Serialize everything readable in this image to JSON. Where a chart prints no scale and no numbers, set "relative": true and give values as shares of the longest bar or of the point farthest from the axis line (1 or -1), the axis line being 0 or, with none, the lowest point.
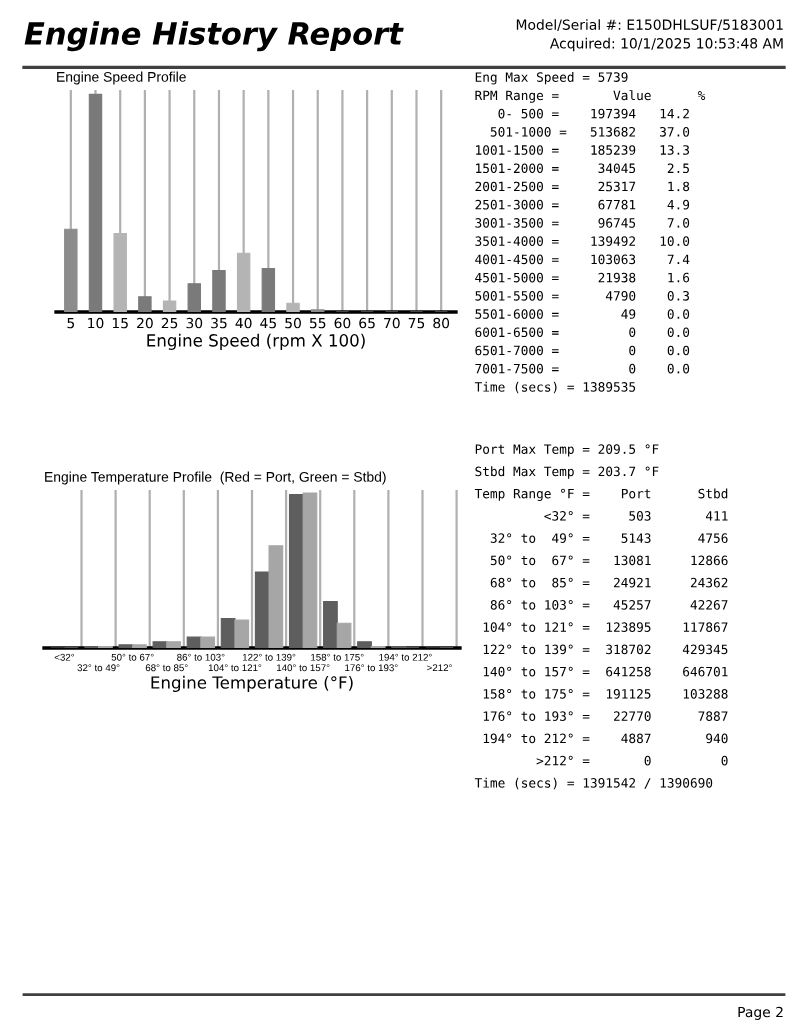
{
  "chart_data": [
    {
      "type": "bar",
      "relative": true,
      "title": "Engine Speed Profile",
      "xlabel": "Engine Speed (rpm X 100)",
      "categories": [
        "5",
        "10",
        "15",
        "20",
        "25",
        "30",
        "35",
        "40",
        "45",
        "50",
        "55",
        "60",
        "65",
        "70",
        "75",
        "80"
      ],
      "values": [
        0.38,
        1,
        0.36,
        0.07,
        0.05,
        0.13,
        0.19,
        0.27,
        0.2,
        0.04,
        0.01,
        0,
        0,
        0,
        0,
        0
      ],
      "colors": [
        "#8c8c8c",
        "#7a7a7a",
        "#b4b4b4",
        "#7a7a7a",
        "#b4b4b4",
        "#7a7a7a",
        "#7a7a7a",
        "#b4b4b4",
        "#7a7a7a",
        "#b4b4b4",
        "#8c8c8c",
        "#8c8c8c",
        "#8c8c8c",
        "#8c8c8c",
        "#8c8c8c",
        "#8c8c8c"
      ],
      "grid": "x",
      "annotations": [
        "Engine History Report",
        "Model/Serial #: E150DHLSUF/5183001",
        "Acquired: 10/1/2025 10:53:48 AM",
        "Page 2"
      ]
    },
    {
      "type": "other",
      "annotations": [
        "Eng Max Speed = 5739",
        "RPM Range =       Value      %",
        "   0- 500 =    197394   14.2",
        "  501-1000 =   513682   37.0",
        "1001-1500 =    185239   13.3",
        "1501-2000 =     34045    2.5",
        "2001-2500 =     25317    1.8",
        "2501-3000 =     67781    4.9",
        "3001-3500 =     96745    7.0",
        "3501-4000 =    139492   10.0",
        "4001-4500 =    103063    7.4",
        "4501-5000 =     21938    1.6",
        "5001-5500 =      4790    0.3",
        "5501-6000 =        49    0.0",
        "6001-6500 =         0    0.0",
        "6501-7000 =         0    0.0",
        "7001-7500 =         0    0.0",
        "Time (secs) = 1389535"
      ]
    },
    {
      "type": "bar",
      "relative": true,
      "title": "Engine Temperature Profile  (Red = Port, Green = Stbd)",
      "xlabel": "Engine Temperature (°F)",
      "categories": [
        "<32°",
        "32° to 49°",
        "50° to 67°",
        "68° to 85°",
        "86° to 103°",
        "104° to 121°",
        "122° to 139°",
        "140° to 157°",
        "158° to 175°",
        "176° to 193°",
        "194° to 212°",
        ">212°"
      ],
      "series": [
        {
          "color": "#5e5e5e",
          "values": [
            0,
            0.01,
            0.02,
            0.04,
            0.07,
            0.19,
            0.49,
            0.99,
            0.3,
            0.04,
            0.01,
            0
          ]
        },
        {
          "color": "#a6a6a6",
          "values": [
            0,
            0.01,
            0.02,
            0.04,
            0.07,
            0.18,
            0.66,
            1,
            0.16,
            0.01,
            0,
            0
          ]
        }
      ],
      "grid": "x"
    },
    {
      "type": "other",
      "annotations": [
        "Port Max Temp = 209.5 °F",
        "Stbd Max Temp = 203.7 °F",
        "Temp Range °F =    Port      Stbd",
        "         <32° =     503       411",
        "  32° to  49° =    5143      4756",
        "  50° to  67° =   13081     12866",
        "  68° to  85° =   24921     24362",
        "  86° to 103° =   45257     42267",
        " 104° to 121° =  123895    117867",
        " 122° to 139° =  318702    429345",
        " 140° to 157° =  641258    646701",
        " 158° to 175° =  191125    103288",
        " 176° to 193° =   22770      7887",
        " 194° to 212° =    4887       940",
        "        >212° =       0         0",
        "Time (secs) = 1391542 / 1390690"
      ]
    }
  ]
}
